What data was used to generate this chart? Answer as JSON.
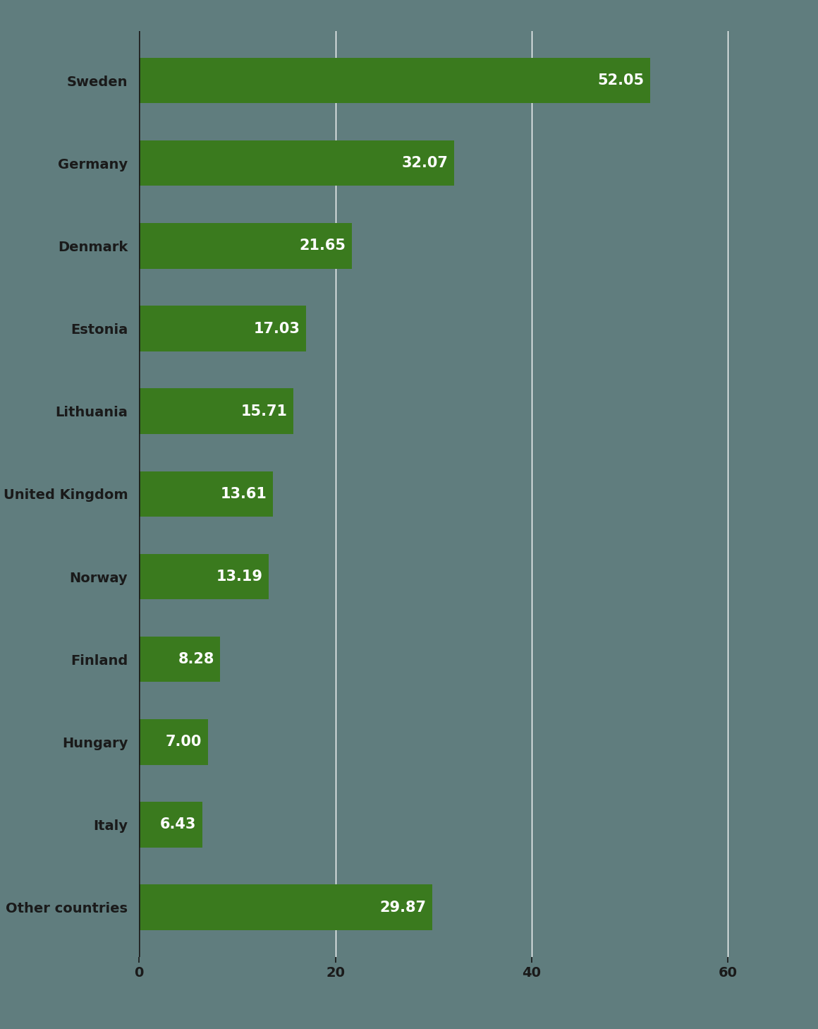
{
  "categories": [
    "Sweden",
    "Germany",
    "Denmark",
    "Estonia",
    "Lithuania",
    "United Kingdom",
    "Norway",
    "Finland",
    "Hungary",
    "Italy",
    "Other countries"
  ],
  "values": [
    52.05,
    32.07,
    21.65,
    17.03,
    15.71,
    13.61,
    13.19,
    8.28,
    7.0,
    6.43,
    29.87
  ],
  "bar_color": "#3a7a1e",
  "background_color": "#607d7e",
  "label_color": "#ffffff",
  "tick_label_color": "#1a1a1a",
  "gridline_color": "#ffffff",
  "axis_line_color": "#1a1a1a",
  "xlim": [
    0,
    65
  ],
  "xticks": [
    0,
    20,
    40,
    60
  ],
  "bar_height": 0.55,
  "label_fontsize": 15,
  "tick_fontsize": 14,
  "ytick_fontsize": 14
}
